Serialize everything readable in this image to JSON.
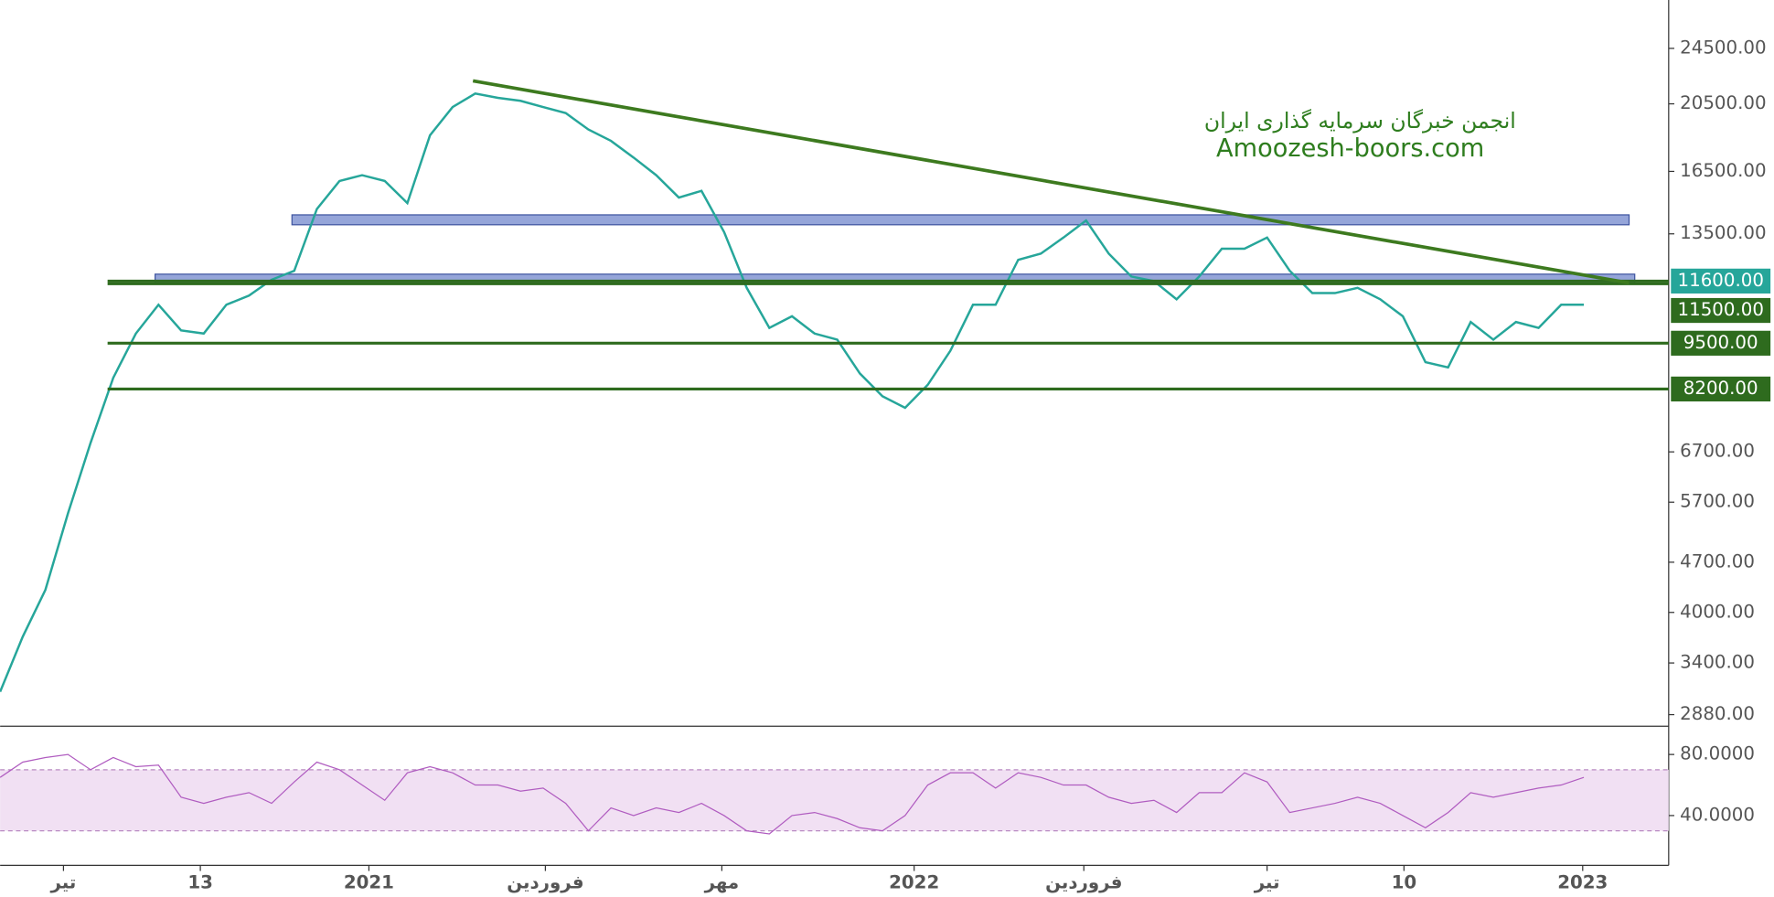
{
  "chart_data": [
    {
      "type": "line",
      "log": true,
      "title": "انجمن خبرگان سرمایه گذاری ایران",
      "subtitle": "Amoozesh-boors.com",
      "color": "#26a69a",
      "x": [
        0,
        1,
        2,
        3,
        4,
        5,
        6,
        7,
        8,
        9,
        10,
        11,
        12,
        13,
        14,
        15,
        16,
        17,
        18,
        19,
        20,
        21,
        22,
        23,
        24,
        25,
        26,
        27,
        28,
        29,
        30,
        31,
        32,
        33,
        34,
        35,
        36,
        37,
        38,
        39,
        40,
        41,
        42,
        43,
        44,
        45,
        46,
        47,
        48,
        49,
        50,
        51,
        52,
        53,
        54,
        55,
        56,
        57,
        58,
        59,
        60,
        61,
        62,
        63,
        64,
        65,
        66,
        67,
        68,
        69,
        70
      ],
      "values": [
        3100,
        3700,
        4300,
        5500,
        6900,
        8500,
        9800,
        10750,
        9900,
        9800,
        10750,
        11070,
        11650,
        11990,
        14620,
        16000,
        16300,
        16000,
        14900,
        18530,
        20290,
        21190,
        20900,
        20700,
        20290,
        19900,
        18880,
        18200,
        17250,
        16300,
        15170,
        15500,
        13580,
        11350,
        9980,
        10360,
        9800,
        9610,
        8620,
        8010,
        7720,
        8310,
        9270,
        10750,
        10750,
        12420,
        12670,
        13340,
        14090,
        12670,
        11770,
        11600,
        10940,
        11770,
        12870,
        12870,
        13340,
        11990,
        11160,
        11160,
        11350,
        10940,
        10360,
        8940,
        8790,
        10170,
        9610,
        10170,
        9980,
        10750,
        10750
      ],
      "xlim": [
        0,
        73.75
      ],
      "xticks": [
        {
          "value": 2.8,
          "label": "تیر"
        },
        {
          "value": 8.85,
          "label": "13"
        },
        {
          "value": 16.3,
          "label": "2021"
        },
        {
          "value": 24.1,
          "label": "فروردین"
        },
        {
          "value": 31.9,
          "label": "مهر"
        },
        {
          "value": 40.4,
          "label": "2022"
        },
        {
          "value": 47.9,
          "label": "فروردین"
        },
        {
          "value": 56,
          "label": "تیر"
        },
        {
          "value": 62.05,
          "label": "10"
        },
        {
          "value": 69.95,
          "label": "2023"
        }
      ],
      "ylim": [
        2775,
        28620
      ],
      "yticks": [
        {
          "value": 24500,
          "label": "24500.00"
        },
        {
          "value": 20500,
          "label": "20500.00"
        },
        {
          "value": 16500,
          "label": "16500.00"
        },
        {
          "value": 13500,
          "label": "13500.00"
        },
        {
          "value": 6700,
          "label": "6700.00"
        },
        {
          "value": 5700,
          "label": "5700.00"
        },
        {
          "value": 4700,
          "label": "4700.00"
        },
        {
          "value": 4000,
          "label": "4000.00"
        },
        {
          "value": 3400,
          "label": "3400.00"
        },
        {
          "value": 2880,
          "label": "2880.00"
        }
      ],
      "levels": [
        {
          "value": 11600,
          "label": "11600.00",
          "color": "#26a69a"
        },
        {
          "value": 11500,
          "label": "11500.00",
          "color": "#2e6b1e"
        },
        {
          "value": 9500,
          "label": "9500.00",
          "color": "#2e6b1e"
        },
        {
          "value": 8200,
          "label": "8200.00",
          "color": "#2e6b1e"
        }
      ],
      "zones": [
        {
          "low": 13900,
          "high": 14350,
          "start": 12.9,
          "end": 72
        },
        {
          "low": 11510,
          "high": 11860,
          "start": 6.85,
          "end": 72.25
        }
      ],
      "trendline": {
        "x": [
          20.9,
          72
        ],
        "values": [
          22070,
          11530
        ],
        "color": "#3d7a1f"
      }
    },
    {
      "type": "line",
      "color": "#b05cc0",
      "x": [
        0,
        1,
        2,
        3,
        4,
        5,
        6,
        7,
        8,
        9,
        10,
        11,
        12,
        13,
        14,
        15,
        16,
        17,
        18,
        19,
        20,
        21,
        22,
        23,
        24,
        25,
        26,
        27,
        28,
        29,
        30,
        31,
        32,
        33,
        34,
        35,
        36,
        37,
        38,
        39,
        40,
        41,
        42,
        43,
        44,
        45,
        46,
        47,
        48,
        49,
        50,
        51,
        52,
        53,
        54,
        55,
        56,
        57,
        58,
        59,
        60,
        61,
        62,
        63,
        64,
        65,
        66,
        67,
        68,
        69,
        70
      ],
      "values": [
        65,
        75,
        78,
        80,
        70,
        78,
        72,
        73,
        52,
        48,
        52,
        55,
        48,
        62,
        75,
        70,
        60,
        50,
        68,
        72,
        68,
        60,
        60,
        56,
        58,
        48,
        30,
        45,
        40,
        45,
        42,
        48,
        40,
        30,
        28,
        40,
        42,
        38,
        32,
        30,
        40,
        60,
        68,
        68,
        58,
        68,
        65,
        60,
        60,
        52,
        48,
        50,
        42,
        55,
        55,
        68,
        62,
        42,
        45,
        48,
        52,
        48,
        40,
        32,
        42,
        55,
        52,
        55,
        58,
        60,
        65
      ],
      "xlim": [
        0,
        73.75
      ],
      "ylim": [
        7.4,
        96.3
      ],
      "yticks": [
        {
          "value": 80,
          "label": "80.0000"
        },
        {
          "value": 40,
          "label": "40.0000"
        }
      ],
      "band": [
        30,
        70
      ]
    }
  ]
}
